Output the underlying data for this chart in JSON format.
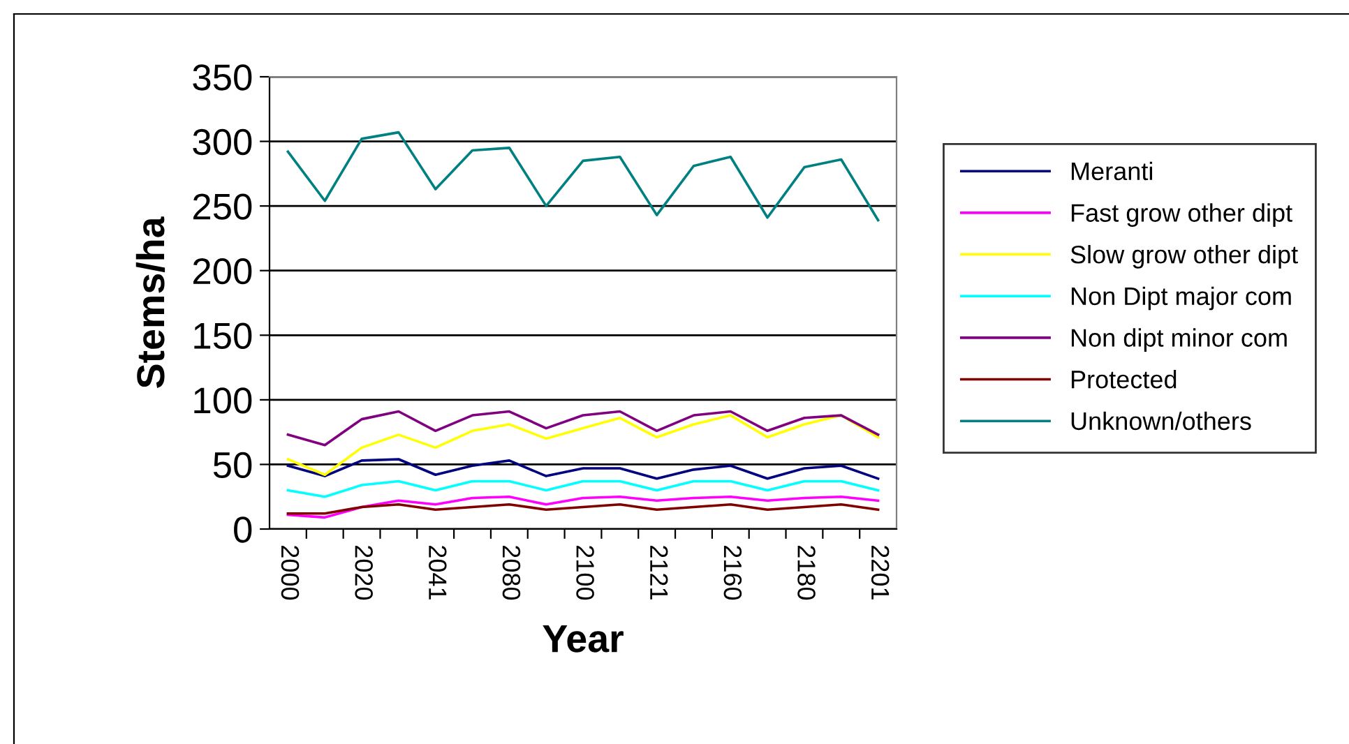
{
  "chart_data": {
    "type": "line",
    "xlabel": "Year",
    "ylabel": "Stems/ha",
    "categories": [
      "2000",
      null,
      "2020",
      null,
      "2041",
      null,
      "2080",
      null,
      "2100",
      null,
      "2121",
      null,
      "2160",
      null,
      "2180",
      null,
      "2201"
    ],
    "ylim": [
      0,
      350
    ],
    "yticks": [
      0,
      50,
      100,
      150,
      200,
      250,
      300,
      350
    ],
    "grid": "y",
    "legend": "right",
    "marker": "none",
    "line_style": "solid",
    "series": [
      {
        "name": "Meranti",
        "color": "#000080",
        "values": [
          49,
          41,
          53,
          54,
          42,
          49,
          53,
          41,
          47,
          47,
          39,
          46,
          49,
          39,
          47,
          49,
          39
        ]
      },
      {
        "name": "Fast grow other dipt",
        "color": "#ff00ff",
        "values": [
          11,
          9,
          17,
          22,
          19,
          24,
          25,
          19,
          24,
          25,
          22,
          24,
          25,
          22,
          24,
          25,
          22
        ]
      },
      {
        "name": "Slow grow other dipt",
        "color": "#ffff00",
        "values": [
          54,
          42,
          63,
          73,
          63,
          76,
          81,
          70,
          78,
          86,
          71,
          81,
          88,
          71,
          81,
          88,
          71
        ]
      },
      {
        "name": "Non Dipt major com",
        "color": "#00ffff",
        "values": [
          30,
          25,
          34,
          37,
          30,
          37,
          37,
          30,
          37,
          37,
          30,
          37,
          37,
          30,
          37,
          37,
          30
        ]
      },
      {
        "name": "Non dipt minor com",
        "color": "#800080",
        "values": [
          73,
          65,
          85,
          91,
          76,
          88,
          91,
          78,
          88,
          91,
          76,
          88,
          91,
          76,
          86,
          88,
          73
        ]
      },
      {
        "name": "Protected",
        "color": "#800000",
        "values": [
          12,
          12,
          17,
          19,
          15,
          17,
          19,
          15,
          17,
          19,
          15,
          17,
          19,
          15,
          17,
          19,
          15
        ]
      },
      {
        "name": "Unknown/others",
        "color": "#008080",
        "values": [
          292,
          254,
          302,
          307,
          263,
          293,
          295,
          250,
          285,
          288,
          243,
          281,
          288,
          241,
          280,
          286,
          239
        ]
      }
    ]
  }
}
